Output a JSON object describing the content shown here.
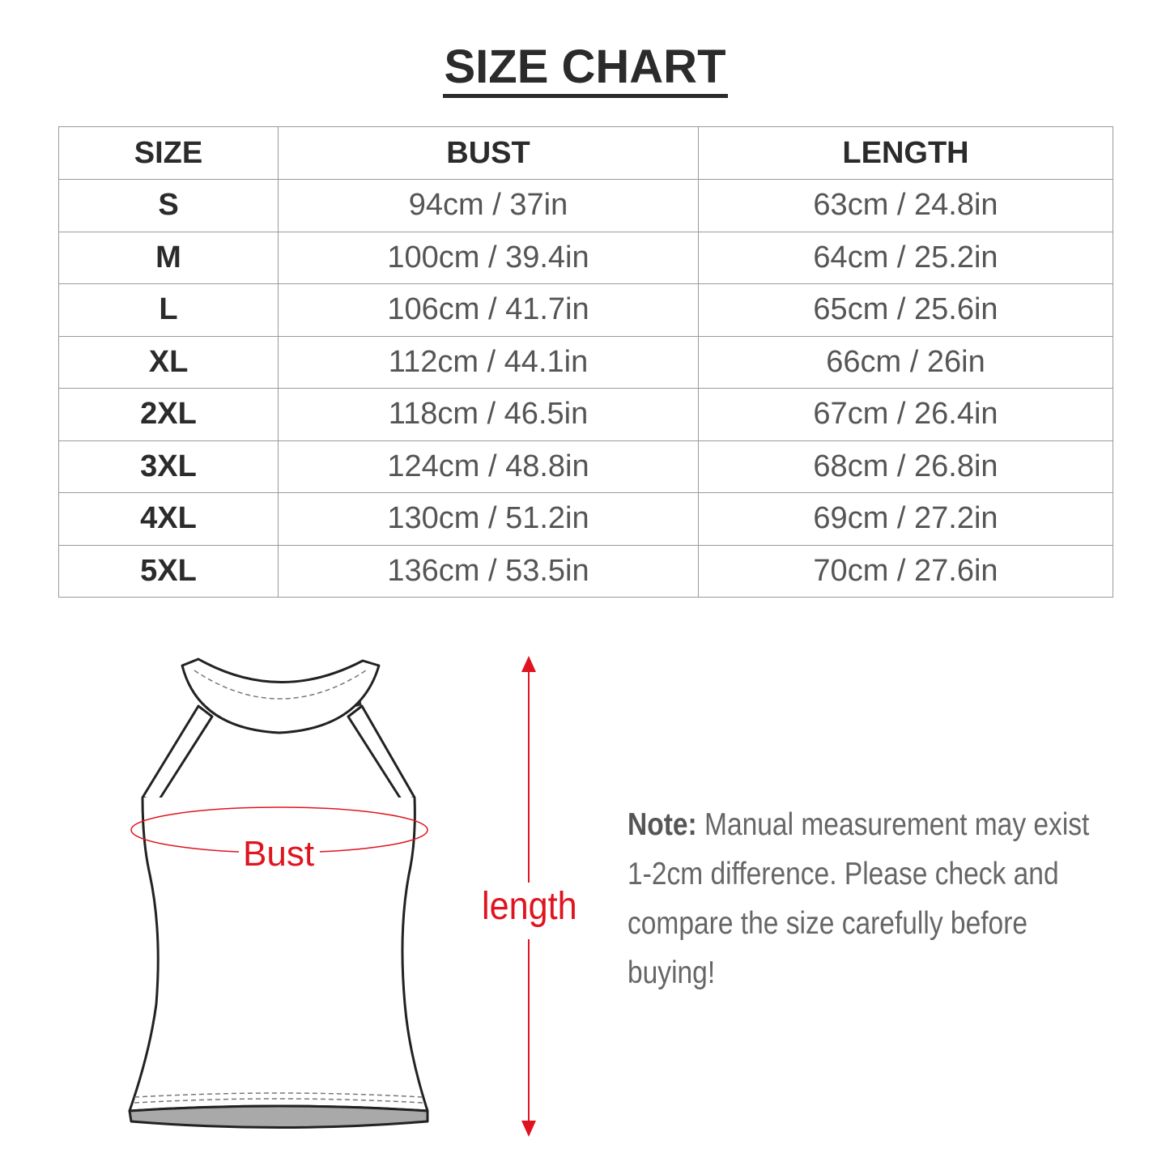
{
  "title": "SIZE CHART",
  "table": {
    "headers": [
      "SIZE",
      "BUST",
      "LENGTH"
    ],
    "rows": [
      {
        "size": "S",
        "bust": "94cm / 37in",
        "length": "63cm / 24.8in"
      },
      {
        "size": "M",
        "bust": "100cm / 39.4in",
        "length": "64cm / 25.2in"
      },
      {
        "size": "L",
        "bust": "106cm / 41.7in",
        "length": "65cm / 25.6in"
      },
      {
        "size": "XL",
        "bust": "112cm / 44.1in",
        "length": "66cm / 26in"
      },
      {
        "size": "2XL",
        "bust": "118cm / 46.5in",
        "length": "67cm / 26.4in"
      },
      {
        "size": "3XL",
        "bust": "124cm / 48.8in",
        "length": "68cm / 26.8in"
      },
      {
        "size": "4XL",
        "bust": "130cm / 51.2in",
        "length": "69cm / 27.2in"
      },
      {
        "size": "5XL",
        "bust": "136cm / 53.5in",
        "length": "70cm / 27.6in"
      }
    ]
  },
  "diagram": {
    "bust_label": "Bust",
    "length_label": "length",
    "accent_color": "#e0141e"
  },
  "note": {
    "label": "Note:",
    "text": "Manual measurement may exist 1-2cm difference. Please check and compare the size carefully before buying!"
  }
}
